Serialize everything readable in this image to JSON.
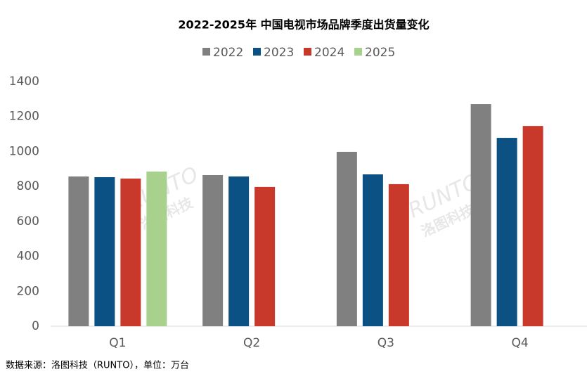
{
  "chart_data": {
    "type": "bar",
    "title": "2022-2025年 中国电视市场品牌季度出货量变化",
    "categories": [
      "Q1",
      "Q2",
      "Q3",
      "Q4"
    ],
    "series": [
      {
        "name": "2022",
        "color": "#808080",
        "values": [
          857,
          865,
          998,
          1271
        ]
      },
      {
        "name": "2023",
        "color": "#0c5183",
        "values": [
          853,
          857,
          869,
          1078
        ]
      },
      {
        "name": "2024",
        "color": "#c8392b",
        "values": [
          845,
          797,
          813,
          1146
        ]
      },
      {
        "name": "2025",
        "color": "#a9d18e",
        "values": [
          885,
          null,
          null,
          null
        ]
      }
    ],
    "ylim": [
      0,
      1400
    ],
    "yticks": [
      0,
      200,
      400,
      600,
      800,
      1000,
      1200,
      1400
    ],
    "grid": false,
    "legend": "top",
    "source": "数据来源：洛图科技（RUNTO），单位：万台",
    "watermark": [
      "RUNTO",
      "洛图科技"
    ]
  }
}
